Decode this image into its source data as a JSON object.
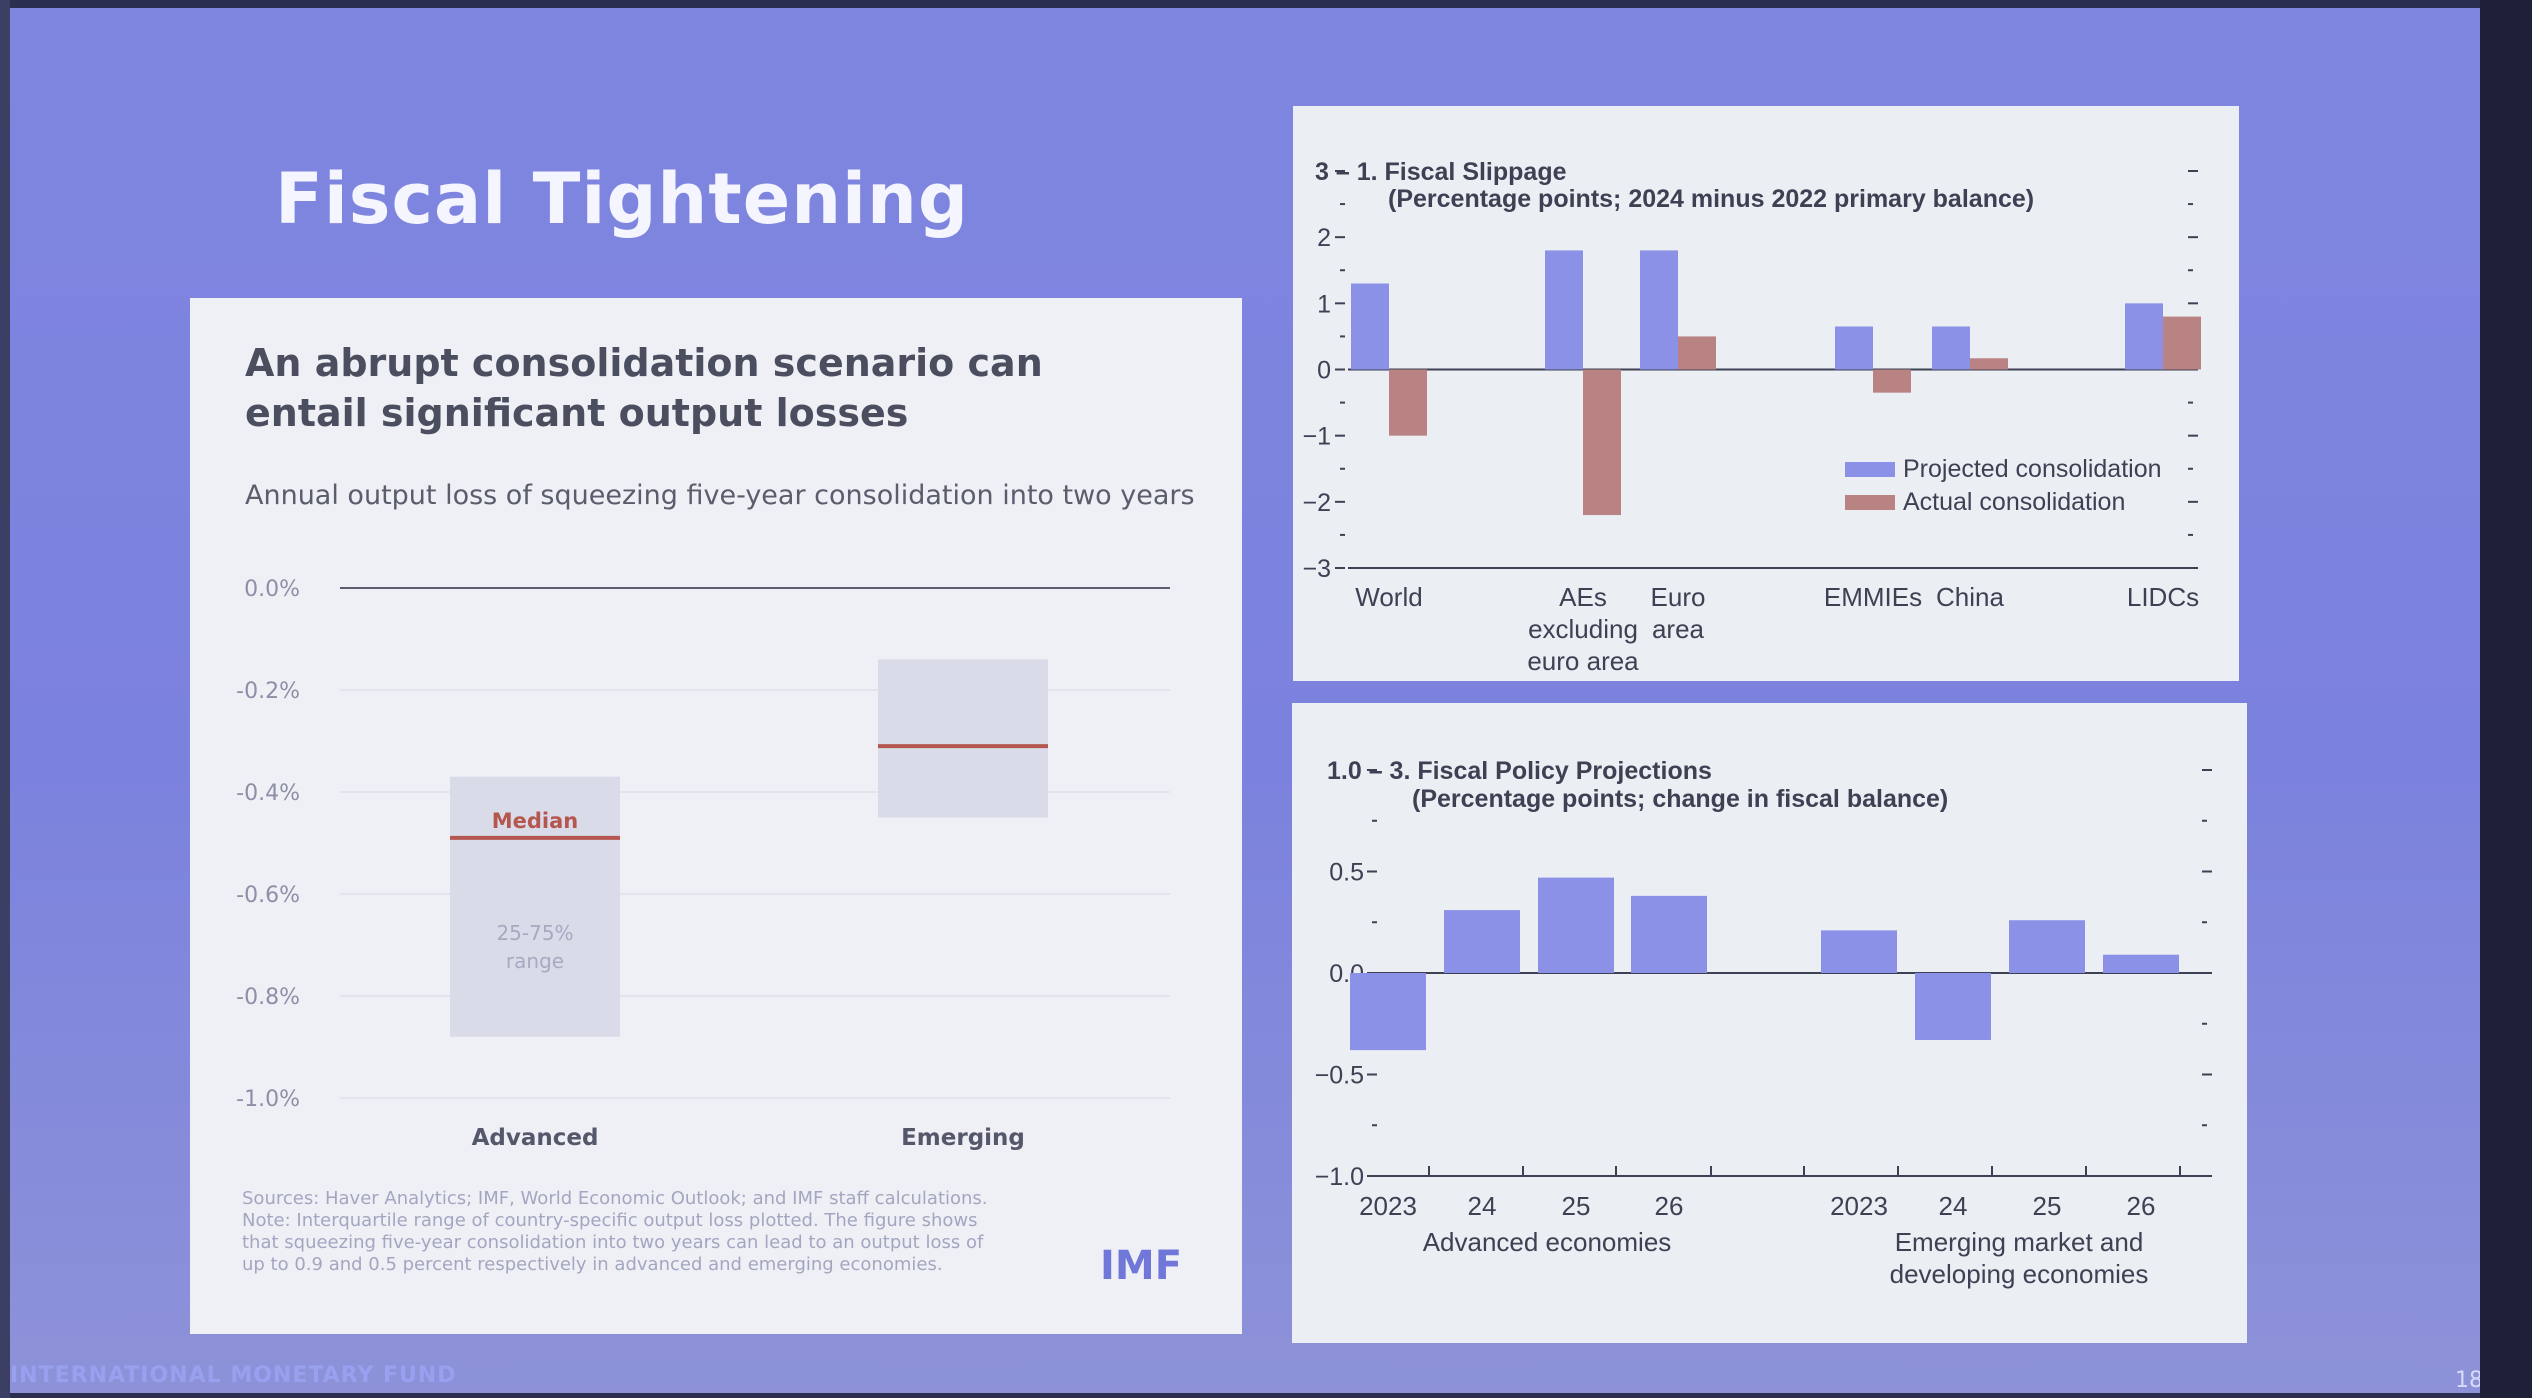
{
  "slide": {
    "title": "Fiscal Tightening",
    "footer": "INTERNATIONAL MONETARY FUND",
    "page_number": "18",
    "colors": {
      "background": "#7f86e0",
      "accent_bar": "#8b91e6",
      "actual_bar": "#b98383",
      "median_line": "#b5574f"
    }
  },
  "left_panel": {
    "title_line1": "An abrupt consolidation scenario can",
    "title_line2": "entail significant output losses",
    "subtitle": "Annual output loss of squeezing five-year consolidation into two years",
    "median_label": "Median",
    "range_label_line1": "25-75%",
    "range_label_line2": "range",
    "sources": [
      "Sources: Haver Analytics; IMF, World Economic Outlook; and IMF staff calculations.",
      "Note: Interquartile range of country-specific output loss plotted. The figure shows",
      "that squeezing five-year consolidation into two years can lead to an output loss of",
      "up to 0.9 and 0.5 percent respectively in advanced and emerging economies."
    ],
    "logo_text": "IMF"
  },
  "chart_data": [
    {
      "type": "bar",
      "title": "An abrupt consolidation scenario can entail significant output losses",
      "subtitle": "Annual output loss of squeezing five-year consolidation into two years",
      "categories": [
        "Advanced",
        "Emerging"
      ],
      "series": [
        {
          "name": "25-75% range",
          "low": [
            -0.88,
            -0.45
          ],
          "high": [
            -0.37,
            -0.14
          ]
        },
        {
          "name": "Median",
          "values": [
            -0.49,
            -0.31
          ]
        }
      ],
      "yticks": [
        "0.0%",
        "-0.2%",
        "-0.4%",
        "-0.6%",
        "-0.8%",
        "-1.0%"
      ],
      "ylim": [
        -1.0,
        0.0
      ],
      "grid": true
    },
    {
      "type": "bar",
      "title": "3 – 1. Fiscal Slippage",
      "subtitle": "(Percentage points; 2024 minus 2022 primary balance)",
      "categories": [
        {
          "lines": [
            "World"
          ]
        },
        {
          "lines": [
            "AEs",
            "excluding",
            "euro area"
          ]
        },
        {
          "lines": [
            "Euro",
            "area"
          ]
        },
        {
          "lines": [
            "EMMIEs"
          ]
        },
        {
          "lines": [
            "China"
          ]
        },
        {
          "lines": [
            "LIDCs"
          ]
        }
      ],
      "series": [
        {
          "name": "Projected consolidation",
          "color": "#8b91e6",
          "values": [
            1.3,
            1.8,
            1.8,
            0.65,
            0.65,
            1.0
          ]
        },
        {
          "name": "Actual consolidation",
          "color": "#b98383",
          "values": [
            -1.0,
            -2.2,
            0.5,
            -0.35,
            0.17,
            0.8
          ]
        }
      ],
      "yticks": [
        "3",
        "2",
        "1",
        "0",
        "−1",
        "−2",
        "−3"
      ],
      "ylim": [
        -3,
        3
      ],
      "legend": "bottom-right"
    },
    {
      "type": "bar",
      "title": "1.0 – 3. Fiscal Policy Projections",
      "subtitle": "(Percentage points; change in fiscal balance)",
      "groups": [
        {
          "name": "Advanced economies",
          "categories": [
            "2023",
            "24",
            "25",
            "26"
          ],
          "values": [
            -0.38,
            0.31,
            0.47,
            0.38
          ]
        },
        {
          "name_line1": "Emerging market and",
          "name_line2": "developing economies",
          "categories": [
            "2023",
            "24",
            "25",
            "26"
          ],
          "values": [
            0.21,
            -0.33,
            0.26,
            0.09
          ]
        }
      ],
      "color": "#8b91e6",
      "yticks": [
        "1.0",
        "0.5",
        "0.0",
        "−0.5",
        "−1.0"
      ],
      "ylim": [
        -1.0,
        1.0
      ]
    }
  ]
}
